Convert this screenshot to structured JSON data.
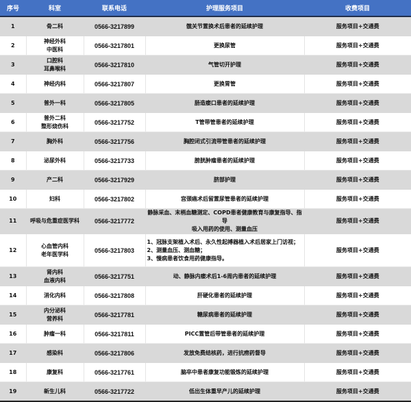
{
  "header": {
    "no": "序号",
    "dept": "科室",
    "phone": "联系电话",
    "service": "护理服务项目",
    "fee": "收费项目"
  },
  "rows": [
    {
      "no": "1",
      "dept": [
        "骨二科"
      ],
      "phone": "0566-3217899",
      "service": [
        "髋关节置换术后患者的延续护理"
      ],
      "fee": "服务项目+交通费"
    },
    {
      "no": "2",
      "dept": [
        "神经外科",
        "中医科"
      ],
      "phone": "0566-3217801",
      "service": [
        "更换尿管"
      ],
      "fee": "服务项目+交通费"
    },
    {
      "no": "3",
      "dept": [
        "口腔科",
        "耳鼻喉科"
      ],
      "phone": "0566-3217810",
      "service": [
        "气管切开护理"
      ],
      "fee": "服务项目+交通费"
    },
    {
      "no": "4",
      "dept": [
        "神经内科"
      ],
      "phone": "0566-3217807",
      "service": [
        "更换胃管"
      ],
      "fee": "服务项目+交通费"
    },
    {
      "no": "5",
      "dept": [
        "普外一科"
      ],
      "phone": "0566-3217805",
      "service": [
        "肠造瘘口患者的延续护理"
      ],
      "fee": "服务项目+交通费"
    },
    {
      "no": "6",
      "dept": [
        "普外二科",
        "整形烧伤科"
      ],
      "phone": "0566-3217752",
      "service": [
        "T管带管患者的延续护理"
      ],
      "fee": "服务项目+交通费"
    },
    {
      "no": "7",
      "dept": [
        "胸外科"
      ],
      "phone": "0566-3217756",
      "service": [
        "胸腔闭式引流带管患者的延续护理"
      ],
      "fee": "服务项目+交通费"
    },
    {
      "no": "8",
      "dept": [
        "泌尿外科"
      ],
      "phone": "0566-3217733",
      "service": [
        "膀胱肿瘤患者的延续护理"
      ],
      "fee": "服务项目+交通费"
    },
    {
      "no": "9",
      "dept": [
        "产二科"
      ],
      "phone": "0566-3217929",
      "service": [
        "脐部护理"
      ],
      "fee": "服务项目+交通费"
    },
    {
      "no": "10",
      "dept": [
        "妇科"
      ],
      "phone": "0566-3217802",
      "service": [
        "宫颈癌术后留置尿管患者的延续护理"
      ],
      "fee": "服务项目+交通费"
    },
    {
      "no": "11",
      "dept": [
        "呼吸与危重症医学科"
      ],
      "phone": "0566-3217772",
      "service": [
        "静脉采血、末梢血糖测定、COPD患者健康教育与康复指导、指导",
        "吸入用药的使用、测量血压"
      ],
      "fee": "服务项目+交通费"
    },
    {
      "no": "12",
      "dept": [
        "心血管内科",
        "老年医学科"
      ],
      "phone": "0566-3217803",
      "service": [
        "1、冠脉支架植入术后、永久性起搏器植入术后居家上门访视；",
        "2、测量血压、测血糖；",
        "3、慢病患者饮食用药健康指导。"
      ],
      "fee": "服务项目+交通费"
    },
    {
      "no": "13",
      "dept": [
        "肾内科",
        "血液内科"
      ],
      "phone": "0566-3217751",
      "service": [
        "动、静脉内瘘术后1-6周内患者的延续护理"
      ],
      "fee": "服务项目+交通费"
    },
    {
      "no": "14",
      "dept": [
        "消化内科"
      ],
      "phone": "0566-3217808",
      "service": [
        "肝硬化患者的延续护理"
      ],
      "fee": "服务项目+交通费"
    },
    {
      "no": "15",
      "dept": [
        "内分泌科",
        "营养科"
      ],
      "phone": "0566-3217781",
      "service": [
        "糖尿病患者的延续护理"
      ],
      "fee": "服务项目+交通费"
    },
    {
      "no": "16",
      "dept": [
        "肿瘤一科"
      ],
      "phone": "0566-3217811",
      "service": [
        "PICC置管后带管患者的延续护理"
      ],
      "fee": "服务项目+交通费"
    },
    {
      "no": "17",
      "dept": [
        "感染科"
      ],
      "phone": "0566-3217806",
      "service": [
        "发放免费结核药，进行抗痨药督导"
      ],
      "fee": "服务项目+交通费"
    },
    {
      "no": "18",
      "dept": [
        "康复科"
      ],
      "phone": "0566-3217761",
      "service": [
        "脑卒中患者康复功能锻炼的延续护理"
      ],
      "fee": "服务项目+交通费"
    },
    {
      "no": "19",
      "dept": [
        "新生儿科"
      ],
      "phone": "0566-3217722",
      "service": [
        "低出生体重早产儿的延续护理"
      ],
      "fee": "服务项目+交通费"
    }
  ]
}
